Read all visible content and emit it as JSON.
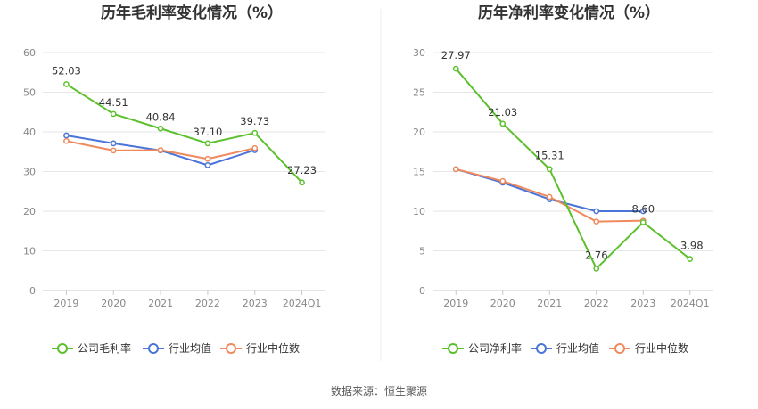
{
  "colors": {
    "company": "#5cc02d",
    "industry_avg": "#4a74d8",
    "industry_median": "#f08a5d",
    "grid": "#e6e6e6",
    "axis": "#c8c8c8"
  },
  "legend_icon": "circle-line-marker",
  "source": "数据来源：恒生聚源",
  "chart_data": [
    {
      "type": "line",
      "title": "历年毛利率变化情况（%）",
      "categories": [
        "2019",
        "2020",
        "2021",
        "2022",
        "2023",
        "2024Q1"
      ],
      "ylim": [
        0,
        60
      ],
      "yticks": [
        0,
        10,
        20,
        30,
        40,
        50,
        60
      ],
      "grid": true,
      "legend_position": "bottom",
      "series": [
        {
          "name": "公司毛利率",
          "color_key": "company",
          "values": [
            52.03,
            44.51,
            40.84,
            37.1,
            39.73,
            27.23
          ],
          "labels": [
            "52.03",
            "44.51",
            "40.84",
            "37.10",
            "39.73",
            "27.23"
          ]
        },
        {
          "name": "行业均值",
          "color_key": "industry_avg",
          "values": [
            39.1,
            37.1,
            35.3,
            31.6,
            35.4,
            null
          ],
          "labels": null
        },
        {
          "name": "行业中位数",
          "color_key": "industry_median",
          "values": [
            37.7,
            35.3,
            35.4,
            33.2,
            35.9,
            null
          ],
          "labels": null
        }
      ]
    },
    {
      "type": "line",
      "title": "历年净利率变化情况（%）",
      "categories": [
        "2019",
        "2020",
        "2021",
        "2022",
        "2023",
        "2024Q1"
      ],
      "ylim": [
        0,
        30
      ],
      "yticks": [
        0,
        5,
        10,
        15,
        20,
        25,
        30
      ],
      "grid": true,
      "legend_position": "bottom",
      "series": [
        {
          "name": "公司净利率",
          "color_key": "company",
          "values": [
            27.97,
            21.03,
            15.31,
            2.76,
            8.6,
            3.98
          ],
          "labels": [
            "27.97",
            "21.03",
            "15.31",
            "2.76",
            "8.60",
            "3.98"
          ]
        },
        {
          "name": "行业均值",
          "color_key": "industry_avg",
          "values": [
            15.3,
            13.6,
            11.5,
            10.0,
            10.0,
            null
          ],
          "labels": null
        },
        {
          "name": "行业中位数",
          "color_key": "industry_median",
          "values": [
            15.3,
            13.8,
            11.8,
            8.7,
            8.8,
            null
          ],
          "labels": null
        }
      ]
    }
  ]
}
